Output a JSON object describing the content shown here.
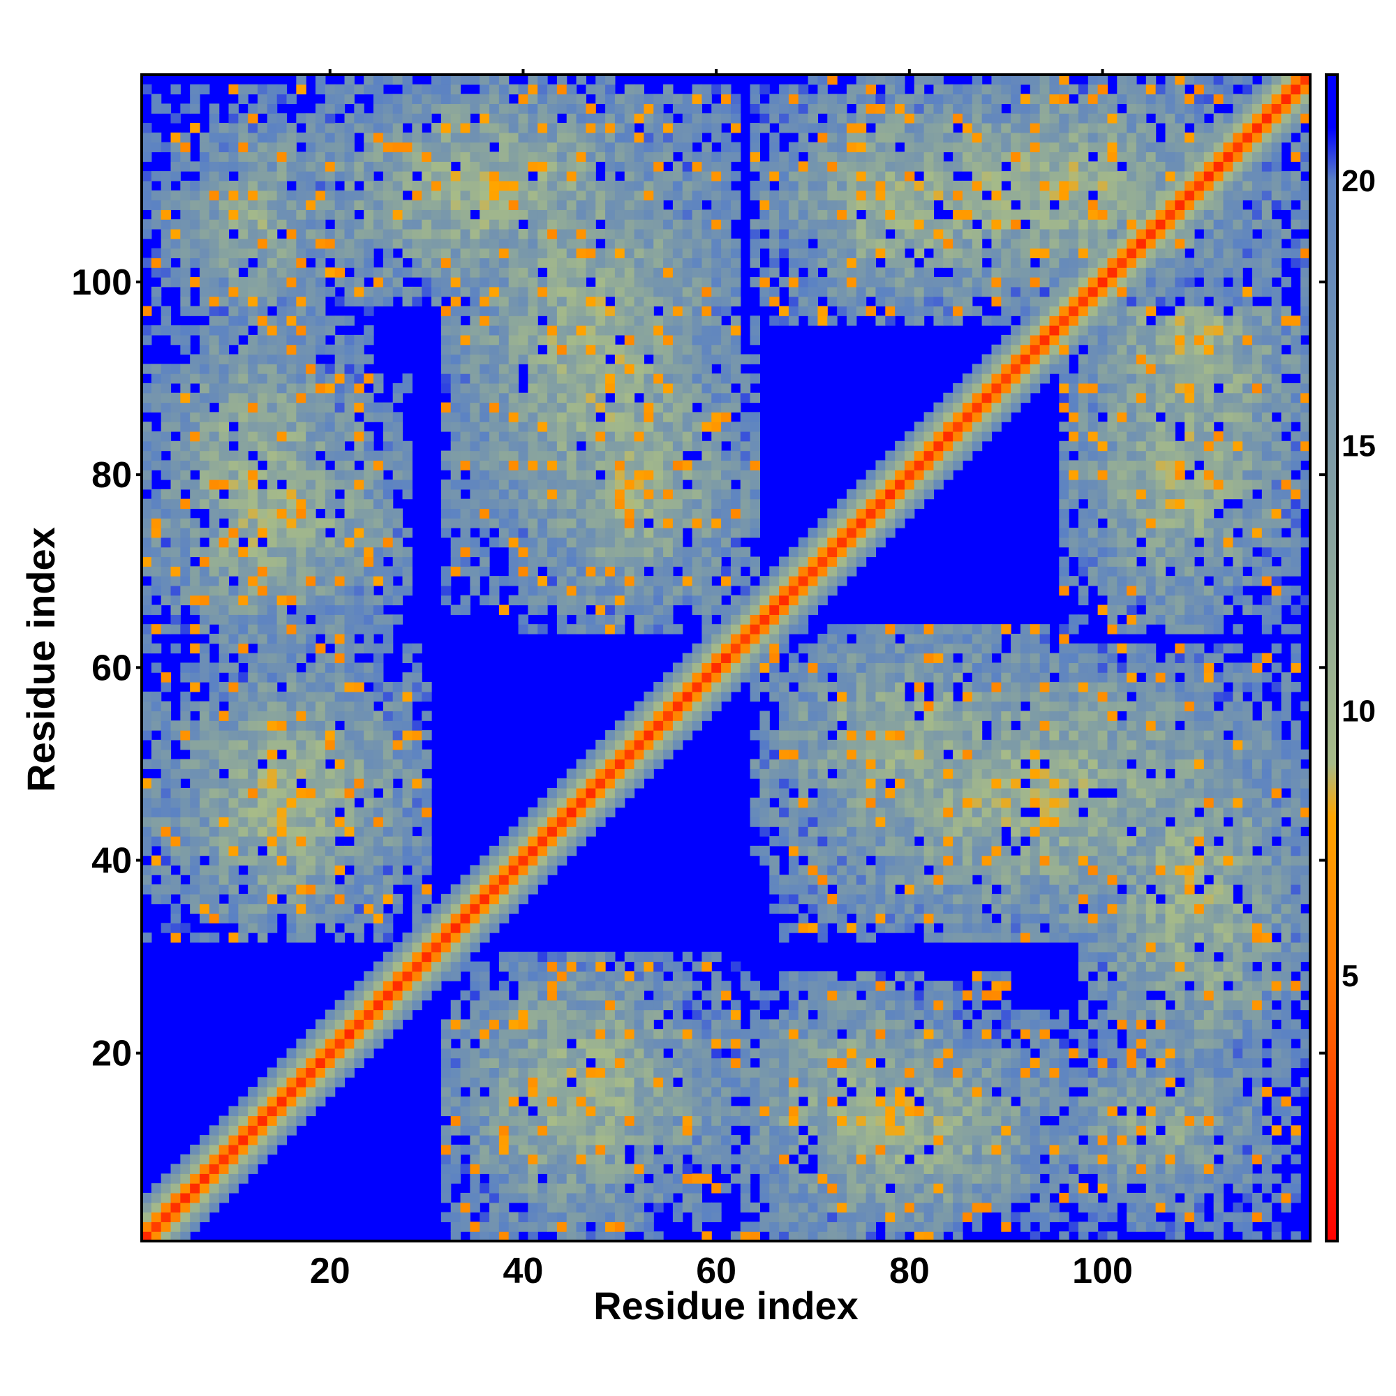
{
  "chart_data": {
    "type": "heatmap",
    "title": "",
    "xlabel": "Residue index",
    "ylabel": "Residue index",
    "n_residues": 121,
    "xlim": [
      1,
      121
    ],
    "ylim": [
      1,
      121
    ],
    "x_ticks": [
      20,
      40,
      60,
      80,
      100
    ],
    "y_ticks": [
      20,
      40,
      60,
      80,
      100
    ],
    "colorbar": {
      "ticks": [
        5,
        10,
        15,
        20
      ],
      "range": [
        0,
        22
      ],
      "stops": [
        {
          "value": 0,
          "color": "#ff0000"
        },
        {
          "value": 5,
          "color": "#ff7800"
        },
        {
          "value": 8,
          "color": "#ffa500"
        },
        {
          "value": 9,
          "color": "#a7bb88"
        },
        {
          "value": 15,
          "color": "#7c9aa8"
        },
        {
          "value": 20,
          "color": "#5b82c4"
        },
        {
          "value": 21,
          "color": "#0000ff"
        }
      ]
    },
    "matrix_encoding": "symmetric Cα distance map (Å); values ≥ 21 shown in blue",
    "blocks": [
      {
        "x": [
          32,
          60
        ],
        "y": [
          1,
          30
        ],
        "level": 14
      },
      {
        "x": [
          62,
          90
        ],
        "y": [
          1,
          28
        ],
        "level": 14
      },
      {
        "x": [
          92,
          120
        ],
        "y": [
          1,
          24
        ],
        "level": 16
      },
      {
        "x": [
          4,
          30
        ],
        "y": [
          32,
          62
        ],
        "level": 14
      },
      {
        "x": [
          66,
          120
        ],
        "y": [
          32,
          62
        ],
        "level": 14
      },
      {
        "x": [
          1,
          24
        ],
        "y": [
          64,
          96
        ],
        "level": 14
      },
      {
        "x": [
          40,
          64
        ],
        "y": [
          64,
          96
        ],
        "level": 14
      },
      {
        "x": [
          96,
          120
        ],
        "y": [
          64,
          96
        ],
        "level": 14
      },
      {
        "x": [
          16,
          56
        ],
        "y": [
          98,
          121
        ],
        "level": 14
      },
      {
        "x": [
          66,
          120
        ],
        "y": [
          98,
          121
        ],
        "level": 14
      }
    ]
  }
}
